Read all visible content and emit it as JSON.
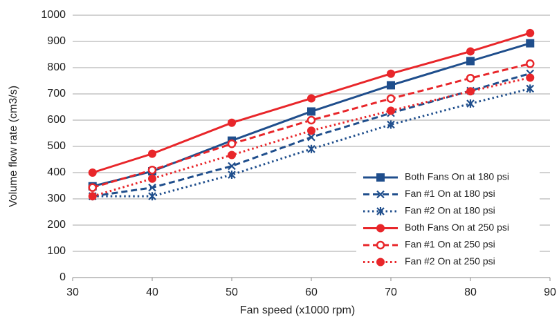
{
  "chart_data": {
    "type": "line",
    "x_label": "Fan speed (x1000 rpm)",
    "y_label": "Volume flow rate (cm3/s)",
    "x": [
      32.5,
      40,
      50,
      60,
      70,
      80,
      87.5
    ],
    "xlim": [
      30,
      90
    ],
    "xticks": [
      30,
      40,
      50,
      60,
      70,
      80,
      90
    ],
    "ylim": [
      0,
      1000
    ],
    "yticks": [
      0,
      100,
      200,
      300,
      400,
      500,
      600,
      700,
      800,
      900,
      1000
    ],
    "grid": true,
    "legend": "lower right",
    "series": [
      {
        "name": "Both Fans On at 180 psi",
        "color": "#1f4e8c",
        "dash": "solid",
        "marker": "square",
        "values": [
          348,
          405,
          522,
          633,
          733,
          825,
          893
        ]
      },
      {
        "name": "Fan #1 On at 180 psi",
        "color": "#1f4e8c",
        "dash": "dashed",
        "marker": "x",
        "values": [
          310,
          343,
          425,
          535,
          627,
          712,
          778
        ]
      },
      {
        "name": "Fan #2 On at 180 psi",
        "color": "#1f4e8c",
        "dash": "dotted",
        "marker": "asterisk",
        "values": [
          310,
          310,
          392,
          490,
          583,
          663,
          720
        ]
      },
      {
        "name": "Both Fans On at 250 psi",
        "color": "#e8262a",
        "dash": "solid",
        "marker": "circle",
        "values": [
          400,
          472,
          590,
          683,
          777,
          862,
          932
        ]
      },
      {
        "name": "Fan #1 On at 250 psi",
        "color": "#e8262a",
        "dash": "dashed",
        "marker": "open-circle",
        "values": [
          343,
          410,
          510,
          600,
          682,
          760,
          815
        ]
      },
      {
        "name": "Fan #2 On at 250 psi",
        "color": "#e8262a",
        "dash": "dotted",
        "marker": "circle",
        "values": [
          310,
          377,
          467,
          560,
          636,
          710,
          762
        ]
      }
    ]
  }
}
